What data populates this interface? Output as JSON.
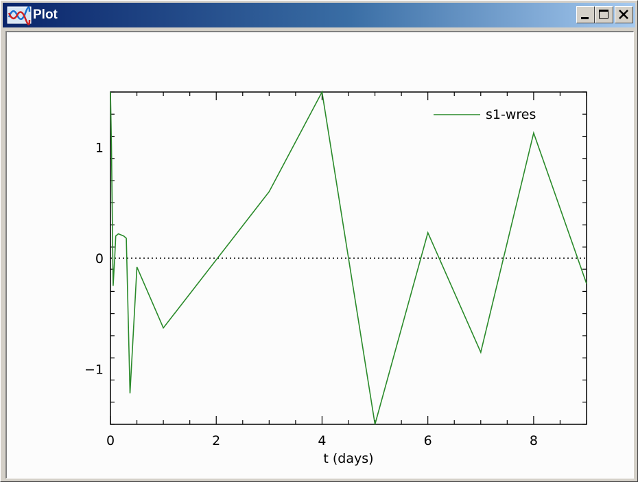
{
  "window": {
    "title": "Plot",
    "icon": "plot-app-icon",
    "buttons": [
      "minimize",
      "maximize",
      "close"
    ]
  },
  "colors": {
    "titlebar_start": "#0a246a",
    "titlebar_end": "#a6caf0",
    "series": "#2a8a2a",
    "plot_background": "#fcfcfc",
    "frame": "#d4d0c8"
  },
  "chart_data": {
    "type": "line",
    "title": "",
    "xlabel": "t (days)",
    "ylabel": "",
    "xlim": [
      0,
      9
    ],
    "ylim": [
      -1.5,
      1.5
    ],
    "x_ticks": [
      0,
      2,
      4,
      6,
      8
    ],
    "x_tick_labels": [
      "0",
      "2",
      "4",
      "6",
      "8"
    ],
    "y_ticks": [
      -1,
      0,
      1
    ],
    "y_tick_labels": [
      "−1",
      "0",
      "1"
    ],
    "grid": false,
    "legend": "top-right",
    "reference_line": {
      "y": 0,
      "style": "dotted"
    },
    "series": [
      {
        "name": "s1-wres",
        "color": "#2a8a2a",
        "x": [
          0,
          0.02,
          0.05,
          0.08,
          0.1,
          0.15,
          0.25,
          0.3,
          0.37,
          0.5,
          1,
          3,
          4,
          5,
          6,
          7,
          8,
          9
        ],
        "y": [
          1.5,
          1.0,
          -0.25,
          0.0,
          0.2,
          0.22,
          0.2,
          0.18,
          -1.22,
          -0.08,
          -0.63,
          0.6,
          1.5,
          -1.5,
          0.23,
          -0.85,
          1.13,
          -0.23
        ]
      }
    ]
  }
}
